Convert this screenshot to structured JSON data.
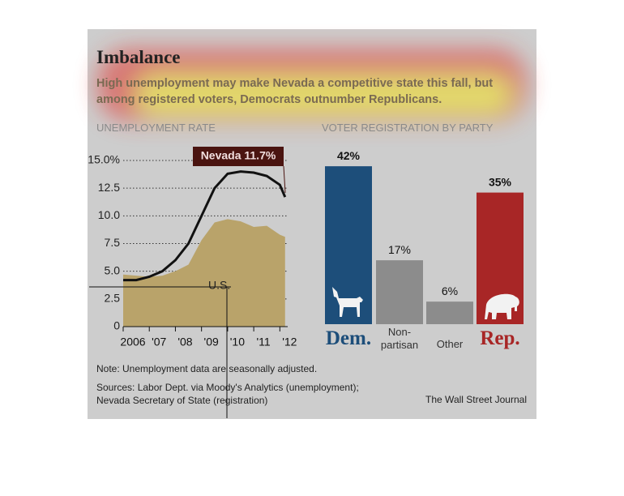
{
  "title": "Imbalance",
  "subtitle": "High unemployment may make Nevada a competitive state this fall, but among registered voters, Democrats outnumber Republicans.",
  "chart_data": [
    {
      "type": "line",
      "title": "UNEMPLOYMENT RATE",
      "x": [
        2006,
        2006.5,
        2007,
        2007.5,
        2008,
        2008.5,
        2009,
        2009.5,
        2010,
        2010.5,
        2011,
        2011.5,
        2012,
        2012.2
      ],
      "series": [
        {
          "name": "U.S.",
          "type": "area",
          "color": "#b9a36a",
          "values": [
            4.7,
            4.6,
            4.5,
            4.6,
            5.0,
            5.6,
            7.8,
            9.4,
            9.7,
            9.5,
            9.0,
            9.1,
            8.3,
            8.1
          ]
        },
        {
          "type": "line",
          "color": "#111111",
          "values": [
            4.2,
            4.2,
            4.5,
            5.0,
            6.0,
            7.5,
            10.0,
            12.5,
            13.8,
            14.0,
            13.9,
            13.6,
            12.8,
            11.7
          ]
        }
      ],
      "annotations": [
        "Nevada 11.7%"
      ],
      "xlim": [
        2006,
        2012.3
      ],
      "xticks": [
        {
          "value": 2006,
          "label": "2006"
        },
        {
          "value": 2007,
          "label": "'07"
        },
        {
          "value": 2008,
          "label": "'08"
        },
        {
          "value": 2009,
          "label": "'09"
        },
        {
          "value": 2010,
          "label": "'10"
        },
        {
          "value": 2011,
          "label": "'11"
        },
        {
          "value": 2012,
          "label": "'12"
        }
      ],
      "ylim": [
        0,
        15
      ],
      "yticks": [
        0,
        2.5,
        {
          "value": 5,
          "label": "5.0"
        },
        7.5,
        {
          "value": 10,
          "label": "10.0"
        },
        12.5,
        {
          "value": 15,
          "label": "15.0%"
        }
      ],
      "grid": true
    },
    {
      "type": "bar",
      "title": "VOTER REGISTRATION BY PARTY",
      "categories": [
        "Dem.",
        "Non-partisan",
        "Other",
        "Rep."
      ],
      "values": [
        42,
        17,
        6,
        35
      ],
      "value_labels": [
        "42%",
        "17%",
        "6%",
        "35%"
      ],
      "colors": [
        "#1d4e7a",
        "#8c8c8c",
        "#8c8c8c",
        "#a82626"
      ]
    }
  ],
  "note": "Note: Unemployment data are seasonally adjusted.",
  "sources": "Sources: Labor Dept. via Moody's Analytics (unemployment); Nevada Secretary of State (registration)",
  "credit": "The Wall Street Journal"
}
